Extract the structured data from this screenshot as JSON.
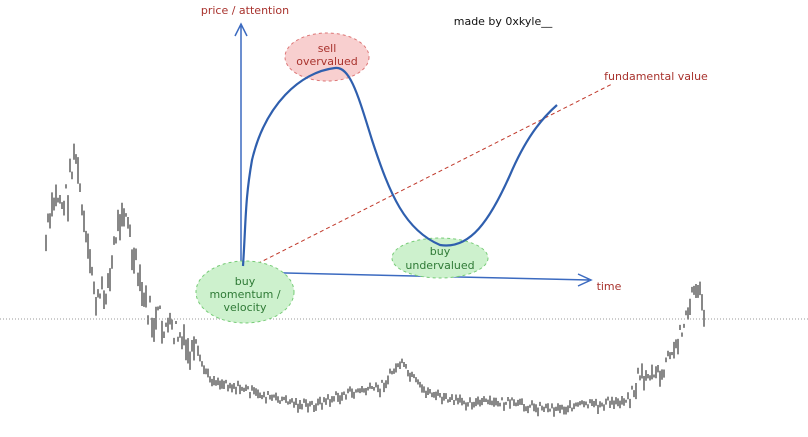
{
  "header": {
    "y_axis_label": "price / attention",
    "credit": "made by 0xkyle__"
  },
  "labels": {
    "sell": {
      "lines": [
        "sell",
        "overvalued"
      ]
    },
    "fundamental": "fundamental value",
    "undervalued": {
      "lines": [
        "buy",
        "undervalued"
      ]
    },
    "momentum": {
      "lines": [
        "buy",
        "momentum /",
        "velocity"
      ]
    },
    "x_axis_label": "time"
  }
}
